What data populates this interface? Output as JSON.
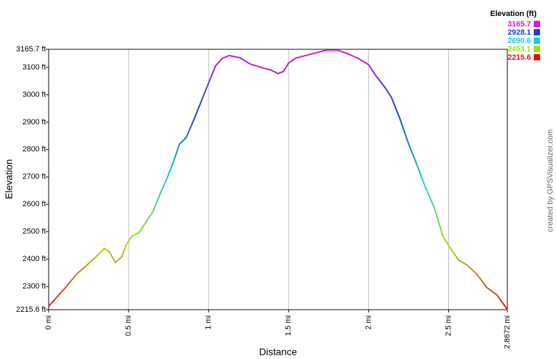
{
  "chart_data": {
    "type": "line",
    "xlabel": "Distance",
    "ylabel": "Elevation",
    "credit": "created by GPSVisualizer.com",
    "legend": {
      "title": "Elevation (ft)",
      "values": [
        3165.7,
        2928.1,
        2690.6,
        2453.1,
        2215.6
      ],
      "colors": [
        "#e010e0",
        "#1040d0",
        "#10d0d0",
        "#a0e010",
        "#e01010"
      ]
    },
    "x": [
      0,
      0.043,
      0.109,
      0.174,
      0.239,
      0.304,
      0.348,
      0.378,
      0.417,
      0.456,
      0.487,
      0.521,
      0.565,
      0.608,
      0.652,
      0.695,
      0.738,
      0.782,
      0.817,
      0.86,
      0.912,
      0.964,
      0.999,
      1.043,
      1.086,
      1.129,
      1.195,
      1.26,
      1.325,
      1.39,
      1.434,
      1.468,
      1.499,
      1.542,
      1.607,
      1.672,
      1.738,
      1.803,
      1.868,
      1.933,
      1.999,
      2.042,
      2.099,
      2.142,
      2.194,
      2.251,
      2.303,
      2.355,
      2.412,
      2.464,
      2.512,
      2.564,
      2.616,
      2.677,
      2.738,
      2.803,
      2.8672
    ],
    "series": [
      {
        "name": "Elevation",
        "values": [
          2228,
          2256,
          2299,
          2345,
          2378,
          2413,
          2439,
          2428,
          2388,
          2408,
          2454,
          2484,
          2497,
          2535,
          2573,
          2636,
          2692,
          2758,
          2819,
          2844,
          2915,
          2991,
          3042,
          3105,
          3133,
          3143,
          3135,
          3112,
          3100,
          3090,
          3077,
          3085,
          3115,
          3133,
          3143,
          3153,
          3163,
          3163,
          3150,
          3133,
          3110,
          3072,
          3029,
          2991,
          2915,
          2819,
          2743,
          2662,
          2586,
          2484,
          2439,
          2396,
          2378,
          2345,
          2297,
          2269,
          2216
        ]
      }
    ],
    "xlim": [
      0,
      2.8672
    ],
    "xticks": [
      {
        "value": 0,
        "label": "0 mi"
      },
      {
        "value": 0.5,
        "label": "0.5 mi"
      },
      {
        "value": 1,
        "label": "1 mi"
      },
      {
        "value": 1.5,
        "label": "1.5 mi"
      },
      {
        "value": 2,
        "label": "2 mi"
      },
      {
        "value": 2.5,
        "label": "2.5 mi"
      },
      {
        "value": 2.8672,
        "label": "2.8672 mi"
      }
    ],
    "ylim": [
      2215.6,
      3165.7
    ],
    "yticks": [
      {
        "value": 2215.6,
        "label": "2215.6 ft"
      },
      {
        "value": 2300,
        "label": "2300 ft"
      },
      {
        "value": 2400,
        "label": "2400 ft"
      },
      {
        "value": 2500,
        "label": "2500 ft"
      },
      {
        "value": 2600,
        "label": "2600 ft"
      },
      {
        "value": 2700,
        "label": "2700 ft"
      },
      {
        "value": 2800,
        "label": "2800 ft"
      },
      {
        "value": 2900,
        "label": "2900 ft"
      },
      {
        "value": 3000,
        "label": "3000 ft"
      },
      {
        "value": 3100,
        "label": "3100 ft"
      },
      {
        "value": 3165.7,
        "label": "3165.7 ft"
      }
    ],
    "grid": true
  }
}
